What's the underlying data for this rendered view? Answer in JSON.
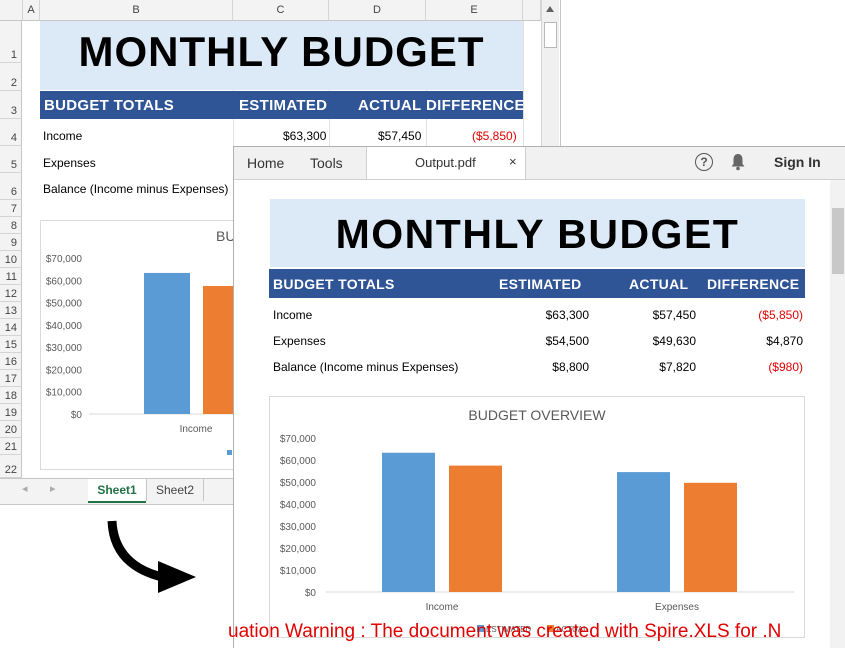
{
  "excel": {
    "columns": [
      "A",
      "B",
      "C",
      "D",
      "E"
    ],
    "rows": [
      "1",
      "2",
      "3",
      "4",
      "5",
      "6",
      "7",
      "8",
      "9",
      "10",
      "11",
      "12",
      "13",
      "14",
      "15",
      "16",
      "17",
      "18",
      "19",
      "20",
      "21",
      "22"
    ],
    "title": "MONTHLY BUDGET",
    "headers": {
      "totals": "BUDGET TOTALS",
      "estimated": "ESTIMATED",
      "actual": "ACTUAL",
      "difference": "DIFFERENCE"
    },
    "income_row": {
      "label": "Income",
      "estimated": "$63,300",
      "actual": "$57,450",
      "difference": "($5,850)"
    },
    "expenses_label": "Expenses",
    "balance_label": "Balance (Income minus Expenses)",
    "chart_title_fragment": "BU",
    "chart_y_ticks": [
      "$70,000",
      "$60,000",
      "$50,000",
      "$40,000",
      "$30,000",
      "$20,000",
      "$10,000",
      "$0"
    ],
    "chart_x_label": "Income",
    "tabs": [
      "Sheet1",
      "Sheet2"
    ]
  },
  "pdf": {
    "menu": [
      "Home",
      "Tools"
    ],
    "doc_title": "Output.pdf",
    "close_glyph": "×",
    "help_glyph": "?",
    "signin": "Sign In",
    "title": "MONTHLY BUDGET",
    "headers": {
      "totals": "BUDGET TOTALS",
      "estimated": "ESTIMATED",
      "actual": "ACTUAL",
      "difference": "DIFFERENCE"
    },
    "rows": [
      {
        "label": "Income",
        "estimated": "$63,300",
        "actual": "$57,450",
        "difference": "($5,850)",
        "negative": true
      },
      {
        "label": "Expenses",
        "estimated": "$54,500",
        "actual": "$49,630",
        "difference": "$4,870",
        "negative": false
      },
      {
        "label": "Balance (Income minus Expenses)",
        "estimated": "$8,800",
        "actual": "$7,820",
        "difference": "($980)",
        "negative": true
      }
    ]
  },
  "chart_data": {
    "type": "bar",
    "title": "BUDGET OVERVIEW",
    "categories": [
      "Income",
      "Expenses"
    ],
    "series": [
      {
        "name": "ESTIMATED",
        "values": [
          63300,
          54500
        ],
        "color": "#5b9bd5"
      },
      {
        "name": "ACTUAL",
        "values": [
          57450,
          49630
        ],
        "color": "#ed7d31"
      }
    ],
    "y_ticks": [
      "$70,000",
      "$60,000",
      "$50,000",
      "$40,000",
      "$30,000",
      "$20,000",
      "$10,000",
      "$0"
    ],
    "ylim": [
      0,
      70000
    ],
    "legend": "bottom",
    "grid": false
  },
  "watermark": "uation Warning : The document was created with  Spire.XLS for .N"
}
